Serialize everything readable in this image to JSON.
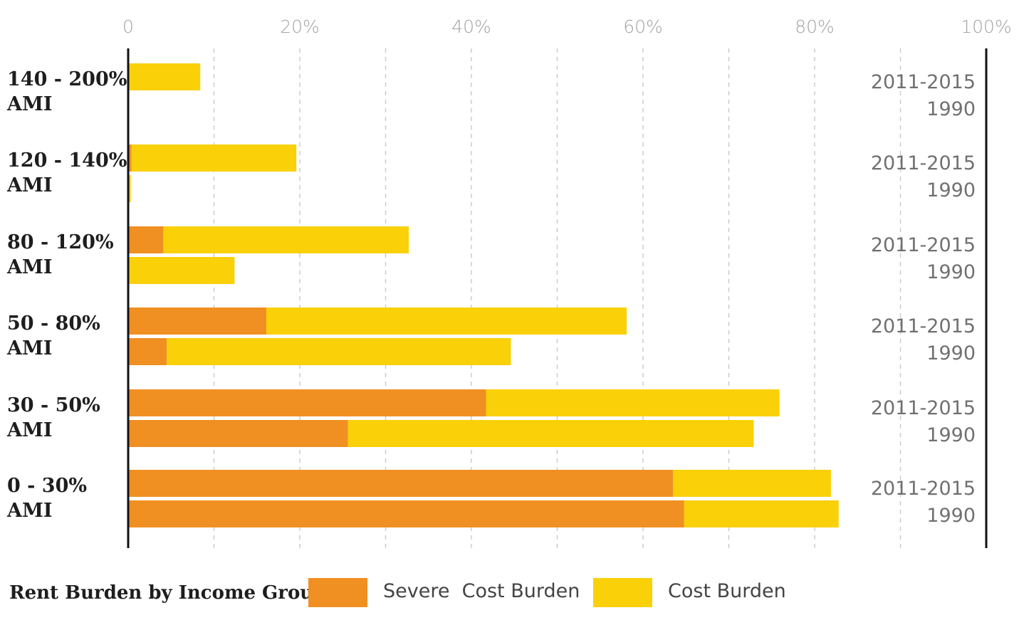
{
  "colors": {
    "severe": "#F08F22",
    "cost": "#FAD009",
    "axis": "#111111",
    "grid": "#c9c9c9"
  },
  "chart_data": {
    "type": "bar",
    "orientation": "horizontal",
    "stacked": true,
    "title": "Rent Burden by Income Group",
    "xlim": [
      0,
      100
    ],
    "x_ticks": [
      "0",
      "20%",
      "40%",
      "60%",
      "80%",
      "100%"
    ],
    "categories": [
      {
        "line1": "140 - 200%",
        "line2": "AMI",
        "periods": [
          "2011-2015",
          "1990"
        ],
        "severe": [
          0,
          0
        ],
        "cost_burden": [
          8.4,
          0
        ]
      },
      {
        "line1": "120 - 140%",
        "line2": "AMI",
        "periods": [
          "2011-2015",
          "1990"
        ],
        "severe": [
          0.4,
          0
        ],
        "cost_burden": [
          19.2,
          0.3
        ]
      },
      {
        "line1": "80 - 120%",
        "line2": "AMI",
        "periods": [
          "2011-2015",
          "1990"
        ],
        "severe": [
          4.1,
          0
        ],
        "cost_burden": [
          28.6,
          12.4
        ]
      },
      {
        "line1": "50 - 80%",
        "line2": "AMI",
        "periods": [
          "2011-2015",
          "1990"
        ],
        "severe": [
          16.1,
          4.5
        ],
        "cost_burden": [
          42,
          40.1
        ]
      },
      {
        "line1": "30 - 50%",
        "line2": "AMI",
        "periods": [
          "2011-2015",
          "1990"
        ],
        "severe": [
          41.7,
          25.6
        ],
        "cost_burden": [
          34.2,
          47.3
        ]
      },
      {
        "line1": "0 - 30%",
        "line2": "AMI",
        "periods": [
          "2011-2015",
          "1990"
        ],
        "severe": [
          63.5,
          64.8
        ],
        "cost_burden": [
          18.4,
          18.0
        ]
      }
    ],
    "legend": [
      {
        "key": "severe",
        "label": "Severe  Cost Burden"
      },
      {
        "key": "cost",
        "label": "Cost Burden"
      }
    ]
  }
}
